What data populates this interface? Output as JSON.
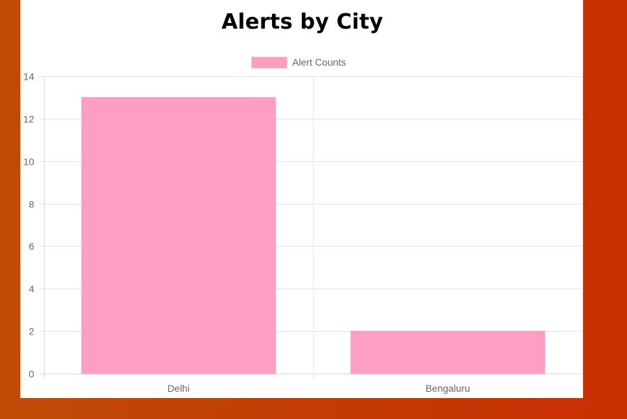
{
  "chart_data": {
    "type": "bar",
    "title": "Alerts by City",
    "categories": [
      "Delhi",
      "Bengaluru"
    ],
    "series": [
      {
        "name": "Alert Counts",
        "values": [
          13,
          2
        ]
      }
    ],
    "ylim": [
      0,
      14
    ],
    "yticks": [
      0,
      2,
      4,
      6,
      8,
      10,
      12,
      14
    ],
    "xlabel": "",
    "ylabel": "",
    "grid": true,
    "legend_position": "top",
    "colors": {
      "bar_fill": "#ff9ec3",
      "bar_stroke": "#ff9ec3",
      "grid": "#e5e5e5",
      "axis": "#d6d6d6",
      "tick_text": "#666666"
    }
  }
}
